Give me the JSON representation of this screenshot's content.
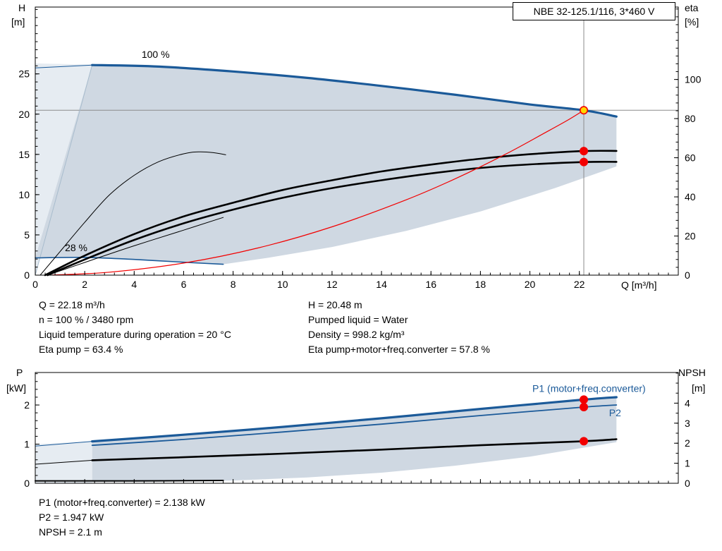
{
  "page": {
    "title_box": "NBE 32-125.1/116, 3*460 V"
  },
  "colors": {
    "blue": "#1b5a99",
    "red": "#f20000",
    "yellow": "#ffd800",
    "black": "#000000",
    "gray_line": "#8c8c8c",
    "envelope": "#cfd8e2",
    "envelope_light": "#e6ecf2",
    "minflow": "#a8bccd"
  },
  "info_top": {
    "left": [
      "Q = 22.18 m³/h",
      "n = 100 % / 3480 rpm",
      "Liquid temperature during operation = 20 °C",
      "Eta pump = 63.4 %"
    ],
    "right": [
      "H = 20.48 m",
      "Pumped liquid = Water",
      "Density = 998.2 kg/m³",
      "Eta pump+motor+freq.converter = 57.8 %"
    ]
  },
  "info_bottom": [
    "P1 (motor+freq.converter) = 2.138 kW",
    "P2 = 1.947 kW",
    "NPSH = 2.1 m"
  ],
  "chart_data": [
    {
      "id": "top",
      "type": "line",
      "title": "QH performance curve",
      "xlabel": "Q [m³/h]",
      "ylabel_left": [
        "H",
        "[m]"
      ],
      "ylabel_right": [
        "eta",
        "[%]"
      ],
      "xlim": [
        0,
        26
      ],
      "x_axis": {
        "ticks": [
          0,
          2,
          4,
          6,
          8,
          10,
          12,
          14,
          16,
          18,
          20,
          22
        ],
        "minor": 0.4,
        "show_labels": true
      },
      "axes": {
        "left": {
          "lim": [
            0,
            33.3
          ],
          "ticks": [
            0,
            5,
            10,
            15,
            20,
            25
          ],
          "minor": 1
        },
        "right": {
          "lim": [
            0,
            137
          ],
          "ticks": [
            0,
            20,
            40,
            60,
            80,
            100
          ],
          "minor": 4
        }
      },
      "duty_point": {
        "Q": 22.18,
        "H": 20.48,
        "eta_pump": 63.4,
        "eta_total": 57.8
      },
      "crosshair": {
        "x": 22.18,
        "y": 20.48
      },
      "fills": [
        {
          "name": "region-light",
          "axis": "left",
          "color": "envelope_light",
          "points": [
            [
              0,
              0
            ],
            [
              0,
              26.3
            ],
            [
              2.3,
              26.15
            ]
          ]
        },
        {
          "name": "region-envelope",
          "axis": "left",
          "color": "envelope",
          "points": [
            [
              2.3,
              26.1
            ],
            [
              5,
              25.9
            ],
            [
              8,
              25.3
            ],
            [
              11,
              24.5
            ],
            [
              14,
              23.5
            ],
            [
              17,
              22.4
            ],
            [
              20,
              21.2
            ],
            [
              22.18,
              20.48
            ],
            [
              23.5,
              19.7
            ],
            [
              23.5,
              13.5
            ],
            [
              21,
              10.8
            ],
            [
              18,
              7.9
            ],
            [
              15,
              5.5
            ],
            [
              12,
              3.5
            ],
            [
              9.5,
              2.2
            ],
            [
              7.6,
              1.35
            ],
            [
              6,
              1.6
            ],
            [
              4,
              1.95
            ],
            [
              2,
              2.2
            ],
            [
              0,
              2.15
            ]
          ]
        }
      ],
      "series": [
        {
          "name": "min-flow-line",
          "axis": "left",
          "color": "minflow",
          "width": 1,
          "points": [
            [
              0,
              0
            ],
            [
              2.3,
              26.1
            ]
          ]
        },
        {
          "name": "curve-100pct-ext",
          "axis": "left",
          "color": "blue",
          "width": 1,
          "points": [
            [
              0,
              25.75
            ],
            [
              2.3,
              26.1
            ]
          ]
        },
        {
          "name": "curve-100pct",
          "axis": "left",
          "color": "blue",
          "width": 3.2,
          "points": [
            [
              2.3,
              26.1
            ],
            [
              5,
              25.9
            ],
            [
              8,
              25.3
            ],
            [
              11,
              24.5
            ],
            [
              14,
              23.5
            ],
            [
              17,
              22.4
            ],
            [
              20,
              21.2
            ],
            [
              22.18,
              20.48
            ],
            [
              23.5,
              19.7
            ]
          ]
        },
        {
          "name": "curve-min-speed",
          "axis": "left",
          "color": "blue",
          "width": 1.6,
          "points": [
            [
              0,
              2.15
            ],
            [
              2,
              2.2
            ],
            [
              4,
              1.95
            ],
            [
              6,
              1.6
            ],
            [
              7.6,
              1.35
            ]
          ]
        },
        {
          "name": "eta-pump-curve",
          "axis": "right",
          "color": "black",
          "width": 2.6,
          "points": [
            [
              0.4,
              0
            ],
            [
              2,
              10
            ],
            [
              4,
              21
            ],
            [
              6,
              30
            ],
            [
              8,
              37
            ],
            [
              10,
              43.5
            ],
            [
              12,
              48.5
            ],
            [
              14,
              53
            ],
            [
              16,
              56.5
            ],
            [
              18,
              59.5
            ],
            [
              20,
              61.8
            ],
            [
              22.18,
              63.4
            ],
            [
              23.5,
              63.5
            ]
          ]
        },
        {
          "name": "eta-total-curve",
          "axis": "right",
          "color": "black",
          "width": 2.6,
          "points": [
            [
              0.5,
              0
            ],
            [
              2,
              8
            ],
            [
              4,
              18
            ],
            [
              6,
              26.5
            ],
            [
              8,
              33.5
            ],
            [
              10,
              39.5
            ],
            [
              12,
              44.5
            ],
            [
              14,
              48.5
            ],
            [
              16,
              52
            ],
            [
              18,
              54.8
            ],
            [
              20,
              56.6
            ],
            [
              22.18,
              57.8
            ],
            [
              23.5,
              57.9
            ]
          ]
        },
        {
          "name": "eta-reduced-speed",
          "axis": "right",
          "color": "black",
          "width": 1,
          "points": [
            [
              0.2,
              0
            ],
            [
              1,
              12
            ],
            [
              2,
              27
            ],
            [
              3,
              41
            ],
            [
              4,
              51
            ],
            [
              5,
              58
            ],
            [
              6,
              62
            ],
            [
              6.6,
              63
            ],
            [
              7.2,
              62.6
            ],
            [
              7.7,
              61.5
            ]
          ]
        },
        {
          "name": "eta-reduced-speed-2",
          "axis": "right",
          "color": "black",
          "width": 1,
          "points": [
            [
              0.5,
              0
            ],
            [
              2,
              6.5
            ],
            [
              4,
              15
            ],
            [
              6,
              23
            ],
            [
              7.6,
              29.5
            ]
          ]
        },
        {
          "name": "duty-parabola",
          "axis": "left",
          "color": "red",
          "width": 1.2,
          "points": [
            [
              0.7,
              0.02
            ],
            [
              3,
              0.37
            ],
            [
              6,
              1.5
            ],
            [
              9,
              3.37
            ],
            [
              12,
              6.0
            ],
            [
              15,
              9.36
            ],
            [
              17,
              12.0
            ],
            [
              19,
              15.0
            ],
            [
              20.5,
              17.5
            ],
            [
              21.5,
              19.2
            ],
            [
              22.18,
              20.48
            ]
          ]
        }
      ],
      "labels": [
        {
          "text": "100 %",
          "x": 4.3,
          "y": 27.0,
          "axis": "left",
          "color": "black",
          "size": 14
        },
        {
          "text": "28 %",
          "x": 1.2,
          "y": 3.0,
          "axis": "left",
          "color": "black",
          "size": 14
        }
      ],
      "markers": [
        {
          "x": 22.18,
          "y": 20.48,
          "axis": "left",
          "fill": "yellow",
          "stroke": "red"
        },
        {
          "x": 22.18,
          "y": 63.4,
          "axis": "right",
          "fill": "red",
          "stroke": "red"
        },
        {
          "x": 22.18,
          "y": 57.8,
          "axis": "right",
          "fill": "red",
          "stroke": "red"
        }
      ]
    },
    {
      "id": "bottom",
      "type": "line",
      "title": "Power and NPSH curves",
      "xlabel": "Q [m³/h]",
      "ylabel_left": [
        "P",
        "[kW]"
      ],
      "ylabel_right": [
        "NPSH",
        "[m]"
      ],
      "xlim": [
        0,
        26
      ],
      "x_axis": {
        "ticks": [
          0,
          2,
          4,
          6,
          8,
          10,
          12,
          14,
          16,
          18,
          20,
          22
        ],
        "minor": 0.4,
        "show_labels": false
      },
      "axes": {
        "left": {
          "lim": [
            0,
            2.83
          ],
          "ticks": [
            0,
            1,
            2
          ],
          "minor": 0.2
        },
        "right": {
          "lim": [
            0,
            5.53
          ],
          "ticks": [
            0,
            1,
            2,
            3,
            4
          ],
          "minor": 0.5
        }
      },
      "duty_point": {
        "Q": 22.18,
        "P1": 2.138,
        "P2": 1.947,
        "NPSH": 2.1
      },
      "crosshair": null,
      "fills": [
        {
          "name": "region-light",
          "axis": "left",
          "color": "envelope_light",
          "points": [
            [
              0,
              0
            ],
            [
              0,
              1.0
            ],
            [
              2.3,
              1.07
            ],
            [
              2.3,
              0
            ]
          ]
        },
        {
          "name": "region-envelope",
          "axis": "left",
          "color": "envelope",
          "points": [
            [
              2.3,
              1.07
            ],
            [
              6,
              1.24
            ],
            [
              10,
              1.44
            ],
            [
              14,
              1.66
            ],
            [
              18,
              1.9
            ],
            [
              22.18,
              2.138
            ],
            [
              23.5,
              2.2
            ],
            [
              23.5,
              1.05
            ],
            [
              20,
              0.68
            ],
            [
              17,
              0.45
            ],
            [
              14,
              0.27
            ],
            [
              11,
              0.15
            ],
            [
              8,
              0.07
            ],
            [
              5,
              0.04
            ],
            [
              2.3,
              0.03
            ]
          ]
        }
      ],
      "series": [
        {
          "name": "p1-extension",
          "axis": "left",
          "color": "blue",
          "width": 1,
          "points": [
            [
              0,
              0.95
            ],
            [
              2.3,
              1.07
            ]
          ]
        },
        {
          "name": "npsh-extension",
          "axis": "right",
          "color": "black",
          "width": 1,
          "points": [
            [
              0,
              0.95
            ],
            [
              2.3,
              1.15
            ]
          ]
        },
        {
          "name": "p1-curve",
          "axis": "left",
          "color": "blue",
          "width": 3.2,
          "points": [
            [
              2.3,
              1.07
            ],
            [
              6,
              1.24
            ],
            [
              10,
              1.44
            ],
            [
              14,
              1.66
            ],
            [
              18,
              1.9
            ],
            [
              22.18,
              2.138
            ],
            [
              23.5,
              2.2
            ]
          ]
        },
        {
          "name": "p2-curve",
          "axis": "left",
          "color": "blue",
          "width": 1.8,
          "points": [
            [
              2.3,
              0.97
            ],
            [
              6,
              1.12
            ],
            [
              10,
              1.31
            ],
            [
              14,
              1.51
            ],
            [
              18,
              1.73
            ],
            [
              22.18,
              1.947
            ],
            [
              23.5,
              2.0
            ]
          ]
        },
        {
          "name": "npsh-curve",
          "axis": "right",
          "color": "black",
          "width": 2.6,
          "points": [
            [
              2.3,
              1.15
            ],
            [
              6,
              1.3
            ],
            [
              10,
              1.48
            ],
            [
              14,
              1.68
            ],
            [
              18,
              1.9
            ],
            [
              22.18,
              2.1
            ],
            [
              23.5,
              2.2
            ]
          ]
        },
        {
          "name": "npsh-low-speed",
          "axis": "right",
          "color": "black",
          "width": 2,
          "points": [
            [
              0,
              0.12
            ],
            [
              4,
              0.12
            ],
            [
              7.6,
              0.14
            ]
          ]
        }
      ],
      "labels": [
        {
          "text": "P1 (motor+freq.converter)",
          "x": 20.1,
          "y": 2.33,
          "axis": "left",
          "color": "blue",
          "size": 14
        },
        {
          "text": "P2",
          "x": 23.2,
          "y": 1.71,
          "axis": "left",
          "color": "blue",
          "size": 14
        }
      ],
      "markers": [
        {
          "x": 22.18,
          "y": 2.138,
          "axis": "left",
          "fill": "red",
          "stroke": "red"
        },
        {
          "x": 22.18,
          "y": 1.947,
          "axis": "left",
          "fill": "red",
          "stroke": "red"
        },
        {
          "x": 22.18,
          "y": 2.1,
          "axis": "right",
          "fill": "red",
          "stroke": "red"
        }
      ]
    }
  ]
}
